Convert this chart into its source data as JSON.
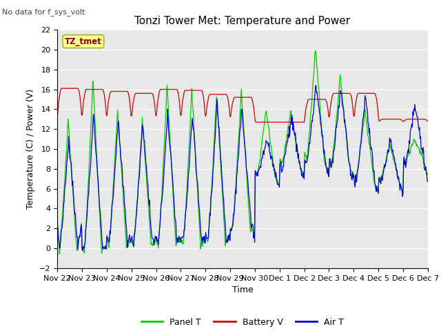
{
  "title": "Tonzi Tower Met: Temperature and Power",
  "no_data_text": "No data for f_sys_volt",
  "legend_box_label": "TZ_tmet",
  "ylabel": "Temperature (C) / Power (V)",
  "xlabel": "Time",
  "ylim": [
    -2,
    22
  ],
  "yticks": [
    -2,
    0,
    2,
    4,
    6,
    8,
    10,
    12,
    14,
    16,
    18,
    20,
    22
  ],
  "xtick_labels": [
    "Nov 22",
    "Nov 23",
    "Nov 24",
    "Nov 25",
    "Nov 26",
    "Nov 27",
    "Nov 28",
    "Nov 29",
    "Nov 30",
    "Dec 1",
    "Dec 2",
    "Dec 3",
    "Dec 4",
    "Dec 5",
    "Dec 6",
    "Dec 7"
  ],
  "bg_color": "#e8e8e8",
  "panel_color": "#00cc00",
  "battery_color": "#cc0000",
  "air_color": "#0000cc",
  "legend_labels": [
    "Panel T",
    "Battery V",
    "Air T"
  ],
  "title_fontsize": 11,
  "axis_fontsize": 9,
  "tick_fontsize": 8,
  "legend_fontsize": 9
}
